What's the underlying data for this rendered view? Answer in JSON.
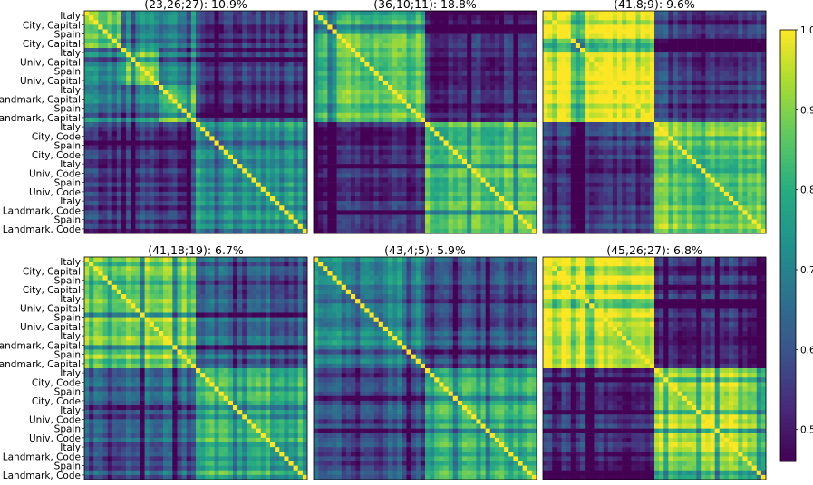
{
  "chart_data": {
    "type": "heatmap",
    "colormap": "viridis",
    "value_range": [
      0.46,
      1.0
    ],
    "colorbar": {
      "ticks": [
        0.5,
        0.6,
        0.7,
        0.8,
        0.9,
        1.0
      ],
      "tick_labels": [
        "0.5",
        "0.6",
        "0.7",
        "0.8",
        "0.9",
        "1.0"
      ]
    },
    "row_labels": [
      "Italy",
      "City, Capital",
      "Spain",
      "City, Capital",
      "Italy",
      "Univ, Capital",
      "Spain",
      "Univ, Capital",
      "Italy",
      "Landmark, Capital",
      "Spain",
      "Landmark, Capital",
      "Italy",
      "City, Code",
      "Spain",
      "City, Code",
      "Italy",
      "Univ, Code",
      "Spain",
      "Univ, Code",
      "Italy",
      "Landmark, Code",
      "Spain",
      "Landmark, Code"
    ],
    "panels": [
      {
        "title": "(23,26;27): 10.9%",
        "within_capital": 0.82,
        "within_code": 0.76,
        "cross": 0.56,
        "diagonal_blocks": true
      },
      {
        "title": "(36,10;11): 18.8%",
        "within_capital": 0.84,
        "within_code": 0.86,
        "cross": 0.52,
        "diagonal_blocks": false
      },
      {
        "title": "(41,8;9): 9.6%",
        "within_capital": 0.95,
        "within_code": 0.9,
        "cross": 0.55,
        "diagonal_blocks": false
      },
      {
        "title": "(41,18;19): 6.7%",
        "within_capital": 0.88,
        "within_code": 0.8,
        "cross": 0.62,
        "diagonal_blocks": false
      },
      {
        "title": "(43,4;5): 5.9%",
        "within_capital": 0.72,
        "within_code": 0.78,
        "cross": 0.58,
        "diagonal_blocks": false
      },
      {
        "title": "(45,26;27): 6.8%",
        "within_capital": 0.97,
        "within_code": 0.93,
        "cross": 0.53,
        "diagonal_blocks": false
      }
    ]
  }
}
